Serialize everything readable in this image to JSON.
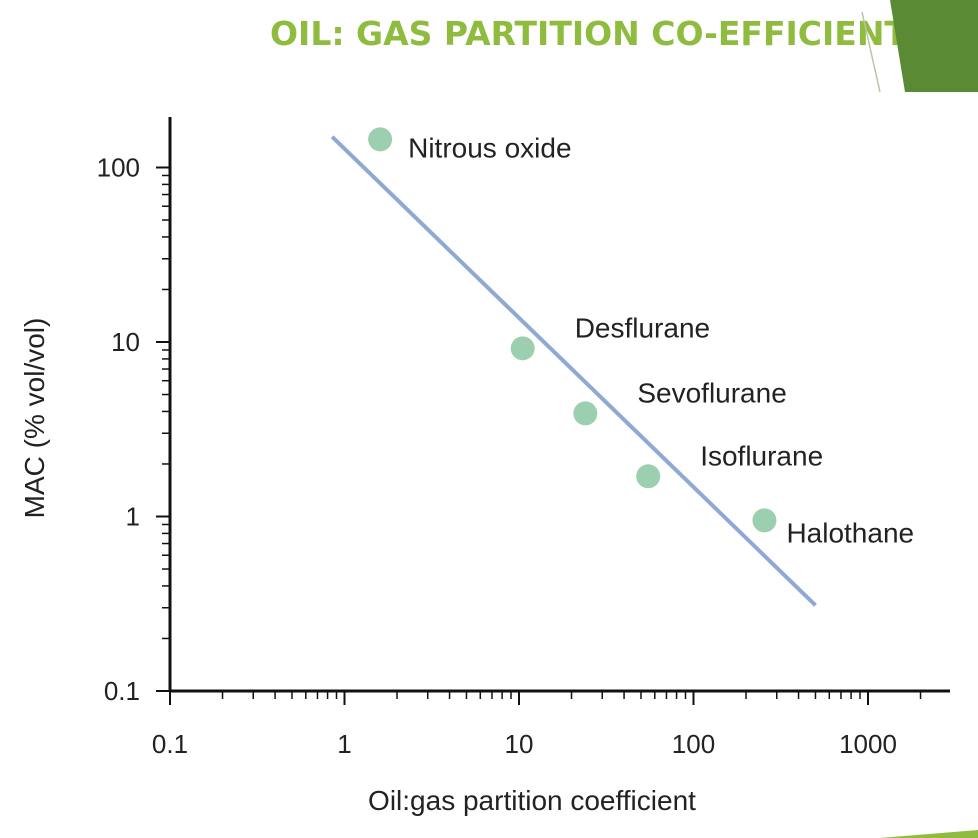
{
  "slide": {
    "title": "OIL: GAS PARTITION CO-EFFICIENT",
    "accent_dark": "#5b8a35",
    "accent_light": "#8fbc3f"
  },
  "chart_data": {
    "type": "scatter",
    "xlabel": "Oil:gas partition coefficient",
    "ylabel": "MAC (% vol/vol)",
    "xscale": "log",
    "yscale": "log",
    "xlim": [
      0.1,
      3000
    ],
    "ylim": [
      0.1,
      200
    ],
    "xticks": [
      {
        "value": 0.1,
        "label": "0.1"
      },
      {
        "value": 1,
        "label": "1"
      },
      {
        "value": 10,
        "label": "10"
      },
      {
        "value": 100,
        "label": "100"
      },
      {
        "value": 1000,
        "label": "1000"
      }
    ],
    "yticks": [
      {
        "value": 0.1,
        "label": "0.1"
      },
      {
        "value": 1,
        "label": "1"
      },
      {
        "value": 10,
        "label": "10"
      },
      {
        "value": 100,
        "label": "100"
      }
    ],
    "points": [
      {
        "name": "Nitrous oxide",
        "x": 1.6,
        "y": 145,
        "label_pos": "right"
      },
      {
        "name": "Desflurane",
        "x": 10.5,
        "y": 9.2,
        "label_pos": "upper-right"
      },
      {
        "name": "Sevoflurane",
        "x": 24,
        "y": 3.9,
        "label_pos": "upper-right"
      },
      {
        "name": "Isoflurane",
        "x": 55,
        "y": 1.7,
        "label_pos": "upper-right"
      },
      {
        "name": "Halothane",
        "x": 255,
        "y": 0.95,
        "label_pos": "lower-right"
      }
    ],
    "trend_line": {
      "x": [
        0.85,
        500
      ],
      "y": [
        150,
        0.31
      ]
    },
    "colors": {
      "points": "#9ccfb0",
      "trend": "#8fa9d4",
      "axis": "#111111"
    },
    "grid": false
  }
}
